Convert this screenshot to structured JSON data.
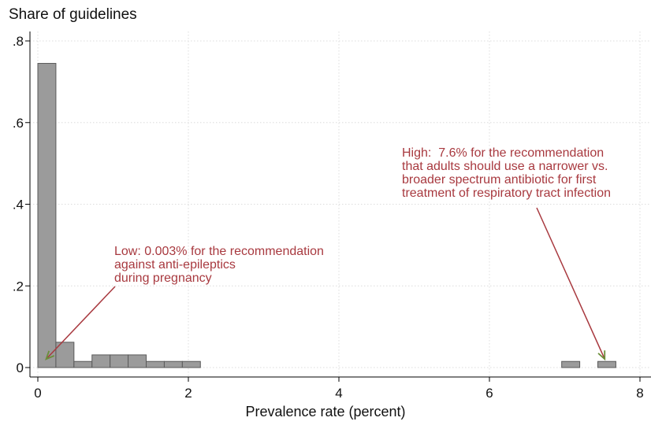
{
  "chart_data": {
    "type": "bar",
    "title": "Share of guidelines",
    "xlabel": "Prevalence rate (percent)",
    "ylabel": "",
    "xlim": [
      0,
      8
    ],
    "ylim": [
      0,
      0.8
    ],
    "x_ticks": [
      "0",
      "2",
      "4",
      "6",
      "8"
    ],
    "y_ticks": [
      ".8",
      ".6",
      ".4",
      ".2",
      "0"
    ],
    "grid": true,
    "bins": [
      {
        "start": 0.0,
        "end": 0.24,
        "share": 0.745
      },
      {
        "start": 0.24,
        "end": 0.48,
        "share": 0.062
      },
      {
        "start": 0.48,
        "end": 0.72,
        "share": 0.015
      },
      {
        "start": 0.72,
        "end": 0.96,
        "share": 0.031
      },
      {
        "start": 0.96,
        "end": 1.2,
        "share": 0.031
      },
      {
        "start": 1.2,
        "end": 1.44,
        "share": 0.031
      },
      {
        "start": 1.44,
        "end": 1.68,
        "share": 0.015
      },
      {
        "start": 1.68,
        "end": 1.92,
        "share": 0.015
      },
      {
        "start": 1.92,
        "end": 2.16,
        "share": 0.015
      },
      {
        "start": 6.96,
        "end": 7.2,
        "share": 0.015
      },
      {
        "start": 7.44,
        "end": 7.68,
        "share": 0.015
      }
    ],
    "annotations": [
      {
        "text": "Low: 0.003% for the recommendation\nagainst anti-epileptics\nduring pregnancy",
        "points_to": [
          0.1,
          0.015
        ]
      },
      {
        "text": "High:  7.6% for the recommendation\nthat adults should use a narrower vs.\nbroader spectrum antibiotic for first\ntreatment of respiratory tract infection",
        "points_to": [
          7.5,
          0.015
        ]
      }
    ],
    "colors": {
      "bar_fill": "#9b9b9b",
      "bar_edge": "#5a5a5a",
      "annotation": "#a8393f",
      "arrow": "#a8393f",
      "arrowhead": "#6b8e3a",
      "grid": "#dcdcdc"
    }
  }
}
